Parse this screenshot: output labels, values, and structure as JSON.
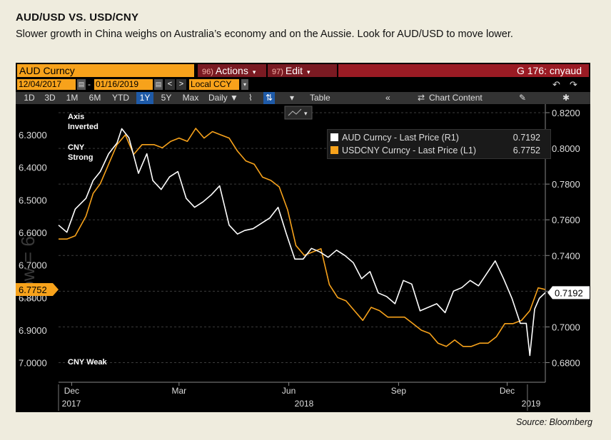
{
  "header": {
    "title": "AUD/USD VS. USD/CNY",
    "subtitle": "Slower growth in China weighs on Australia’s economy and on the Aussie. Look for AUD/USD to move lower."
  },
  "source": "Source: Bloomberg",
  "terminal": {
    "ticker": "AUD Curncy",
    "actions_num": "96)",
    "actions_label": "Actions",
    "edit_num": "97)",
    "edit_label": "Edit",
    "function_code": "G 176: cnyaud",
    "start_date": "12/04/2017",
    "end_date": "01/16/2019",
    "currency": "Local CCY",
    "ranges": [
      "1D",
      "3D",
      "1M",
      "6M",
      "YTD",
      "1Y",
      "5Y",
      "Max"
    ],
    "selected_range": "1Y",
    "frequency": "Daily ▼",
    "table_label": "Table",
    "chart_content_label": "Chart Content",
    "watermark": "Low = 6.",
    "colors": {
      "orange": "#f7a21b",
      "white": "#ffffff",
      "menu_red": "#7a1a22",
      "highlight_blue": "#1e5aa8"
    }
  },
  "chart_data": {
    "type": "line",
    "annotations": {
      "top_line1": "Axis",
      "top_line2": "Inverted",
      "strong_line1": "CNY",
      "strong_line2": "Strong",
      "weak": "CNY Weak"
    },
    "left_axis": {
      "ticks": [
        "6.3000",
        "6.4000",
        "6.5000",
        "6.6000",
        "6.7000",
        "6.8000",
        "6.9000",
        "7.0000"
      ],
      "inverted": true,
      "range": [
        6.21,
        7.06
      ],
      "last_value_label": "6.7752"
    },
    "right_axis": {
      "ticks": [
        "0.8200",
        "0.8000",
        "0.7800",
        "0.7600",
        "0.7400",
        "0.7200",
        "0.7000",
        "0.6800"
      ],
      "range": [
        0.669,
        0.824
      ],
      "last_value_label": "0.7192"
    },
    "x_axis": {
      "month_labels": [
        "Dec",
        "Mar",
        "Jun",
        "Sep",
        "Dec"
      ],
      "year_labels": [
        "2017",
        "2018",
        "2019"
      ]
    },
    "legend": {
      "placement": "top-right",
      "aud_label": "AUD Curncy - Last Price (R1)",
      "aud_value": "0.7192",
      "cny_label": "USDCNY Curncy - Last Price (L1)",
      "cny_value": "6.7752"
    },
    "series": [
      {
        "name": "AUD Curncy - Last Price (R1)",
        "axis": "right",
        "color": "#ffffff",
        "x": [
          "2017-12-04",
          "2017-12-11",
          "2017-12-18",
          "2017-12-27",
          "2018-01-02",
          "2018-01-08",
          "2018-01-15",
          "2018-01-22",
          "2018-01-26",
          "2018-02-01",
          "2018-02-09",
          "2018-02-16",
          "2018-02-21",
          "2018-02-28",
          "2018-03-07",
          "2018-03-14",
          "2018-03-21",
          "2018-03-28",
          "2018-04-04",
          "2018-04-11",
          "2018-04-18",
          "2018-04-26",
          "2018-05-03",
          "2018-05-09",
          "2018-05-16",
          "2018-05-23",
          "2018-05-30",
          "2018-06-06",
          "2018-06-13",
          "2018-06-20",
          "2018-06-27",
          "2018-07-04",
          "2018-07-11",
          "2018-07-18",
          "2018-07-25",
          "2018-08-01",
          "2018-08-08",
          "2018-08-15",
          "2018-08-22",
          "2018-08-29",
          "2018-09-05",
          "2018-09-12",
          "2018-09-19",
          "2018-09-26",
          "2018-10-03",
          "2018-10-10",
          "2018-10-17",
          "2018-10-24",
          "2018-10-31",
          "2018-11-07",
          "2018-11-14",
          "2018-11-21",
          "2018-11-28",
          "2018-12-05",
          "2018-12-12",
          "2018-12-19",
          "2018-12-26",
          "2018-12-31",
          "2019-01-03",
          "2019-01-07",
          "2019-01-11",
          "2019-01-16"
        ],
        "values": [
          0.757,
          0.753,
          0.766,
          0.772,
          0.782,
          0.787,
          0.797,
          0.803,
          0.811,
          0.806,
          0.786,
          0.797,
          0.782,
          0.777,
          0.784,
          0.787,
          0.772,
          0.767,
          0.77,
          0.774,
          0.779,
          0.757,
          0.752,
          0.754,
          0.755,
          0.758,
          0.761,
          0.767,
          0.752,
          0.738,
          0.738,
          0.744,
          0.742,
          0.739,
          0.743,
          0.74,
          0.736,
          0.727,
          0.731,
          0.719,
          0.717,
          0.713,
          0.726,
          0.724,
          0.709,
          0.711,
          0.713,
          0.708,
          0.72,
          0.722,
          0.726,
          0.723,
          0.73,
          0.737,
          0.727,
          0.716,
          0.702,
          0.702,
          0.684,
          0.71,
          0.716,
          0.7192
        ]
      },
      {
        "name": "USDCNY Curncy - Last Price (L1)",
        "axis": "left",
        "color": "#f7a21b",
        "x": [
          "2017-12-04",
          "2017-12-11",
          "2017-12-18",
          "2017-12-27",
          "2018-01-02",
          "2018-01-08",
          "2018-01-15",
          "2018-01-22",
          "2018-01-29",
          "2018-02-05",
          "2018-02-12",
          "2018-02-22",
          "2018-03-01",
          "2018-03-08",
          "2018-03-15",
          "2018-03-22",
          "2018-03-29",
          "2018-04-05",
          "2018-04-12",
          "2018-04-19",
          "2018-04-26",
          "2018-05-03",
          "2018-05-10",
          "2018-05-17",
          "2018-05-24",
          "2018-05-31",
          "2018-06-07",
          "2018-06-14",
          "2018-06-21",
          "2018-06-28",
          "2018-07-05",
          "2018-07-12",
          "2018-07-19",
          "2018-07-26",
          "2018-08-02",
          "2018-08-09",
          "2018-08-16",
          "2018-08-23",
          "2018-08-30",
          "2018-09-06",
          "2018-09-13",
          "2018-09-20",
          "2018-09-27",
          "2018-10-04",
          "2018-10-11",
          "2018-10-18",
          "2018-10-25",
          "2018-11-01",
          "2018-11-08",
          "2018-11-15",
          "2018-11-22",
          "2018-11-29",
          "2018-12-06",
          "2018-12-13",
          "2018-12-20",
          "2018-12-27",
          "2019-01-03",
          "2019-01-10",
          "2019-01-16"
        ],
        "values": [
          6.62,
          6.62,
          6.61,
          6.55,
          6.48,
          6.45,
          6.39,
          6.33,
          6.3,
          6.36,
          6.33,
          6.33,
          6.34,
          6.32,
          6.31,
          6.32,
          6.28,
          6.31,
          6.29,
          6.3,
          6.31,
          6.35,
          6.38,
          6.39,
          6.43,
          6.44,
          6.46,
          6.53,
          6.64,
          6.67,
          6.66,
          6.65,
          6.76,
          6.8,
          6.81,
          6.84,
          6.87,
          6.83,
          6.84,
          6.86,
          6.86,
          6.86,
          6.88,
          6.9,
          6.91,
          6.94,
          6.95,
          6.93,
          6.95,
          6.95,
          6.94,
          6.94,
          6.92,
          6.88,
          6.88,
          6.87,
          6.84,
          6.77,
          6.7752
        ]
      }
    ]
  }
}
